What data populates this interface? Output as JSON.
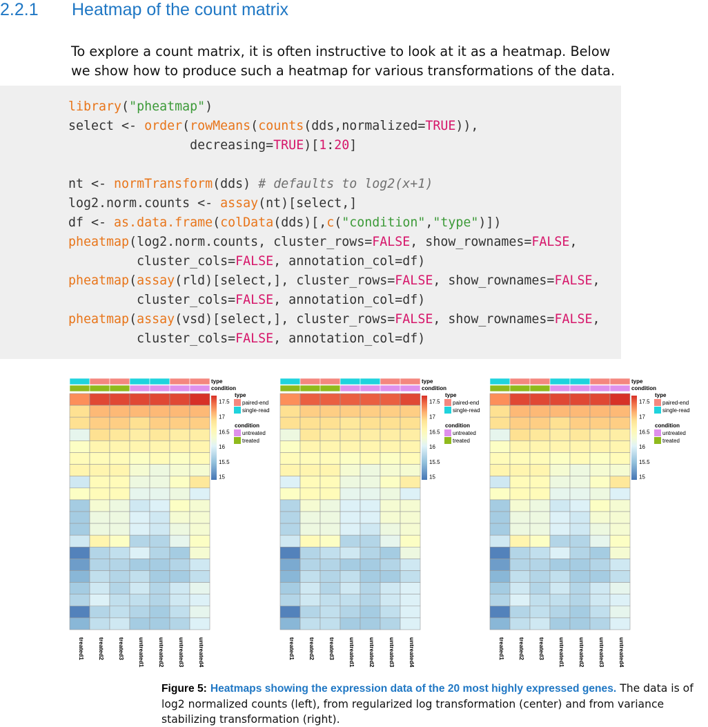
{
  "section": {
    "number": "2.2.1",
    "title": "Heatmap of the count matrix"
  },
  "intro": "To explore a count matrix, it is often instructive to look at it as a heatmap. Below we show how to produce such a heatmap for various transformations of the data.",
  "code_lines": [
    [
      [
        "fn",
        "library"
      ],
      [
        "p",
        "("
      ],
      [
        "str",
        "\"pheatmap\""
      ],
      [
        "p",
        ")"
      ]
    ],
    [
      [
        "p",
        "select <- "
      ],
      [
        "fn",
        "order"
      ],
      [
        "p",
        "("
      ],
      [
        "fn",
        "rowMeans"
      ],
      [
        "p",
        "("
      ],
      [
        "fn",
        "counts"
      ],
      [
        "p",
        "(dds,normalized="
      ],
      [
        "kw",
        "TRUE"
      ],
      [
        "p",
        ")),"
      ]
    ],
    [
      [
        "p",
        "                decreasing="
      ],
      [
        "kw",
        "TRUE"
      ],
      [
        "p",
        ")["
      ],
      [
        "kw",
        "1"
      ],
      [
        "p",
        ":"
      ],
      [
        "kw",
        "20"
      ],
      [
        "p",
        "]"
      ]
    ],
    [],
    [
      [
        "p",
        "nt <- "
      ],
      [
        "fn",
        "normTransform"
      ],
      [
        "p",
        "(dds) "
      ],
      [
        "cm",
        "# defaults to log2(x+1)"
      ]
    ],
    [
      [
        "p",
        "log2.norm.counts <- "
      ],
      [
        "fn",
        "assay"
      ],
      [
        "p",
        "(nt)[select,]"
      ]
    ],
    [
      [
        "p",
        "df <- "
      ],
      [
        "fn",
        "as.data.frame"
      ],
      [
        "p",
        "("
      ],
      [
        "fn",
        "colData"
      ],
      [
        "p",
        "(dds)[,"
      ],
      [
        "fn",
        "c"
      ],
      [
        "p",
        "("
      ],
      [
        "str",
        "\"condition\""
      ],
      [
        "p",
        ","
      ],
      [
        "str",
        "\"type\""
      ],
      [
        "p",
        ")])"
      ]
    ],
    [
      [
        "fn",
        "pheatmap"
      ],
      [
        "p",
        "(log2.norm.counts, cluster_rows="
      ],
      [
        "kw",
        "FALSE"
      ],
      [
        "p",
        ", show_rownames="
      ],
      [
        "kw",
        "FALSE"
      ],
      [
        "p",
        ","
      ]
    ],
    [
      [
        "p",
        "         cluster_cols="
      ],
      [
        "kw",
        "FALSE"
      ],
      [
        "p",
        ", annotation_col=df)"
      ]
    ],
    [
      [
        "fn",
        "pheatmap"
      ],
      [
        "p",
        "("
      ],
      [
        "fn",
        "assay"
      ],
      [
        "p",
        "(rld)[select,], cluster_rows="
      ],
      [
        "kw",
        "FALSE"
      ],
      [
        "p",
        ", show_rownames="
      ],
      [
        "kw",
        "FALSE"
      ],
      [
        "p",
        ","
      ]
    ],
    [
      [
        "p",
        "         cluster_cols="
      ],
      [
        "kw",
        "FALSE"
      ],
      [
        "p",
        ", annotation_col=df)"
      ]
    ],
    [
      [
        "fn",
        "pheatmap"
      ],
      [
        "p",
        "("
      ],
      [
        "fn",
        "assay"
      ],
      [
        "p",
        "(vsd)[select,], cluster_rows="
      ],
      [
        "kw",
        "FALSE"
      ],
      [
        "p",
        ", show_rownames="
      ],
      [
        "kw",
        "FALSE"
      ],
      [
        "p",
        ","
      ]
    ],
    [
      [
        "p",
        "         cluster_cols="
      ],
      [
        "kw",
        "FALSE"
      ],
      [
        "p",
        ", annotation_col=df)"
      ]
    ]
  ],
  "colors": {
    "section": "#1f77c4",
    "paired_end": "#f4877f",
    "single_read": "#1fd3dd",
    "untreated": "#df90ec",
    "treated": "#8fba1d"
  },
  "chart_data": [
    {
      "type": "heatmap",
      "columns": [
        "treated1",
        "treated2",
        "treated3",
        "untreated1",
        "untreated2",
        "untreated3",
        "untreated4"
      ],
      "annotations": {
        "type": [
          "single-read",
          "paired-end",
          "paired-end",
          "single-read",
          "single-read",
          "paired-end",
          "paired-end"
        ],
        "condition": [
          "treated",
          "treated",
          "treated",
          "untreated",
          "untreated",
          "untreated",
          "untreated"
        ]
      },
      "annotation_labels": {
        "type_row": "type",
        "condition_row": "condition"
      },
      "legend": {
        "scale_ticks": [
          "17.5",
          "17",
          "16.5",
          "16",
          "15.5",
          "15"
        ],
        "type_title": "type",
        "type_levels": [
          "paired-end",
          "single-read"
        ],
        "condition_title": "condition",
        "condition_levels": [
          "untreated",
          "treated"
        ]
      },
      "color_range": [
        14.9,
        17.7
      ],
      "values": [
        [
          17.3,
          17.6,
          17.6,
          17.6,
          17.6,
          17.6,
          17.7
        ],
        [
          16.9,
          17.1,
          17.1,
          17.1,
          17.1,
          17.1,
          17.1
        ],
        [
          16.9,
          17.0,
          17.0,
          16.9,
          17.0,
          17.0,
          17.0
        ],
        [
          16.1,
          16.9,
          16.8,
          16.7,
          16.8,
          16.7,
          16.7
        ],
        [
          16.4,
          16.6,
          16.6,
          16.6,
          16.6,
          16.6,
          16.6
        ],
        [
          16.5,
          16.5,
          16.5,
          16.4,
          16.5,
          16.4,
          16.5
        ],
        [
          16.6,
          16.6,
          16.6,
          16.3,
          16.2,
          16.3,
          16.3
        ],
        [
          15.9,
          16.5,
          16.5,
          16.2,
          16.2,
          16.4,
          16.8
        ],
        [
          16.4,
          16.5,
          16.5,
          16.1,
          16.1,
          16.2,
          16.0
        ],
        [
          15.6,
          16.3,
          16.2,
          15.9,
          16.0,
          16.4,
          16.3
        ],
        [
          15.6,
          16.2,
          16.2,
          16.0,
          15.9,
          16.3,
          16.3
        ],
        [
          15.6,
          16.2,
          16.2,
          16.0,
          15.9,
          16.2,
          16.3
        ],
        [
          15.9,
          16.6,
          16.4,
          15.7,
          15.7,
          16.1,
          16.4
        ],
        [
          15.0,
          15.7,
          15.8,
          16.0,
          15.7,
          15.6,
          16.3
        ],
        [
          15.2,
          15.7,
          15.7,
          15.6,
          15.6,
          15.7,
          15.9
        ],
        [
          15.4,
          15.8,
          15.7,
          15.8,
          15.6,
          15.6,
          15.8
        ],
        [
          15.6,
          15.9,
          15.7,
          15.9,
          15.7,
          15.9,
          16.1
        ],
        [
          15.7,
          16.0,
          15.8,
          15.8,
          15.7,
          15.9,
          16.0
        ],
        [
          15.0,
          15.7,
          15.8,
          15.7,
          15.6,
          15.8,
          16.1
        ],
        [
          15.4,
          15.8,
          15.9,
          15.6,
          15.6,
          15.7,
          16.0
        ]
      ]
    },
    {
      "type": "heatmap",
      "columns": [
        "treated1",
        "treated2",
        "treated3",
        "untreated1",
        "untreated2",
        "untreated3",
        "untreated4"
      ],
      "annotations": {
        "type": [
          "single-read",
          "paired-end",
          "paired-end",
          "single-read",
          "single-read",
          "paired-end",
          "paired-end"
        ],
        "condition": [
          "treated",
          "treated",
          "treated",
          "untreated",
          "untreated",
          "untreated",
          "untreated"
        ]
      },
      "annotation_labels": {
        "type_row": "type",
        "condition_row": "condition"
      },
      "legend": {
        "scale_ticks": [
          "17.5",
          "17",
          "16.5",
          "16",
          "15.5",
          "15"
        ],
        "type_title": "type",
        "type_levels": [
          "paired-end",
          "single-read"
        ],
        "condition_title": "condition",
        "condition_levels": [
          "untreated",
          "treated"
        ]
      },
      "color_range": [
        14.9,
        17.7
      ],
      "values": [
        [
          17.3,
          17.5,
          17.5,
          17.5,
          17.5,
          17.5,
          17.6
        ],
        [
          16.9,
          17.0,
          17.0,
          17.0,
          17.0,
          17.0,
          17.0
        ],
        [
          16.9,
          16.9,
          16.9,
          16.8,
          16.9,
          16.9,
          16.9
        ],
        [
          16.2,
          16.8,
          16.7,
          16.7,
          16.7,
          16.7,
          16.7
        ],
        [
          16.4,
          16.6,
          16.6,
          16.6,
          16.6,
          16.6,
          16.6
        ],
        [
          16.5,
          16.5,
          16.5,
          16.4,
          16.5,
          16.4,
          16.5
        ],
        [
          16.6,
          16.6,
          16.6,
          16.3,
          16.2,
          16.3,
          16.3
        ],
        [
          16.0,
          16.5,
          16.5,
          16.2,
          16.2,
          16.4,
          16.7
        ],
        [
          16.4,
          16.5,
          16.5,
          16.1,
          16.1,
          16.2,
          16.0
        ],
        [
          15.7,
          16.3,
          16.2,
          16.0,
          16.0,
          16.3,
          16.3
        ],
        [
          15.7,
          16.2,
          16.2,
          16.0,
          16.0,
          16.3,
          16.3
        ],
        [
          15.7,
          16.2,
          16.2,
          16.0,
          15.9,
          16.2,
          16.3
        ],
        [
          15.9,
          16.5,
          16.4,
          15.7,
          15.7,
          16.1,
          16.4
        ],
        [
          15.0,
          15.7,
          15.8,
          15.9,
          15.7,
          15.6,
          16.2
        ],
        [
          15.3,
          15.7,
          15.7,
          15.6,
          15.6,
          15.7,
          15.9
        ],
        [
          15.4,
          15.8,
          15.7,
          15.8,
          15.6,
          15.6,
          15.8
        ],
        [
          15.6,
          15.9,
          15.7,
          15.9,
          15.7,
          15.9,
          16.0
        ],
        [
          15.7,
          15.9,
          15.8,
          15.8,
          15.7,
          15.9,
          16.0
        ],
        [
          15.0,
          15.7,
          15.8,
          15.7,
          15.6,
          15.8,
          16.0
        ],
        [
          15.4,
          15.8,
          15.8,
          15.6,
          15.6,
          15.7,
          16.0
        ]
      ]
    },
    {
      "type": "heatmap",
      "columns": [
        "treated1",
        "treated2",
        "treated3",
        "untreated1",
        "untreated2",
        "untreated3",
        "untreated4"
      ],
      "annotations": {
        "type": [
          "single-read",
          "paired-end",
          "paired-end",
          "single-read",
          "single-read",
          "paired-end",
          "paired-end"
        ],
        "condition": [
          "treated",
          "treated",
          "treated",
          "untreated",
          "untreated",
          "untreated",
          "untreated"
        ]
      },
      "annotation_labels": {
        "type_row": "type",
        "condition_row": "condition"
      },
      "legend": {
        "scale_ticks": [
          "17.5",
          "17",
          "16.5",
          "16",
          "15.5",
          "15"
        ],
        "type_title": "type",
        "type_levels": [
          "paired-end",
          "single-read"
        ],
        "condition_title": "condition",
        "condition_levels": [
          "untreated",
          "treated"
        ]
      },
      "color_range": [
        14.9,
        17.7
      ],
      "values": [
        [
          17.3,
          17.6,
          17.6,
          17.6,
          17.6,
          17.6,
          17.7
        ],
        [
          16.9,
          17.1,
          17.1,
          17.1,
          17.1,
          17.1,
          17.1
        ],
        [
          16.9,
          17.0,
          17.0,
          16.9,
          17.0,
          17.0,
          17.0
        ],
        [
          16.1,
          16.9,
          16.8,
          16.7,
          16.8,
          16.7,
          16.7
        ],
        [
          16.4,
          16.6,
          16.6,
          16.6,
          16.6,
          16.6,
          16.6
        ],
        [
          16.5,
          16.5,
          16.5,
          16.4,
          16.5,
          16.4,
          16.5
        ],
        [
          16.6,
          16.6,
          16.6,
          16.3,
          16.2,
          16.3,
          16.3
        ],
        [
          15.9,
          16.5,
          16.5,
          16.2,
          16.2,
          16.4,
          16.8
        ],
        [
          16.4,
          16.5,
          16.5,
          16.1,
          16.1,
          16.2,
          16.0
        ],
        [
          15.6,
          16.3,
          16.2,
          15.9,
          16.0,
          16.4,
          16.3
        ],
        [
          15.6,
          16.2,
          16.2,
          16.0,
          15.9,
          16.3,
          16.3
        ],
        [
          15.6,
          16.2,
          16.2,
          16.0,
          15.9,
          16.2,
          16.3
        ],
        [
          15.9,
          16.6,
          16.4,
          15.7,
          15.7,
          16.1,
          16.4
        ],
        [
          15.0,
          15.7,
          15.8,
          16.0,
          15.7,
          15.6,
          16.3
        ],
        [
          15.2,
          15.7,
          15.7,
          15.6,
          15.6,
          15.7,
          15.9
        ],
        [
          15.4,
          15.8,
          15.7,
          15.8,
          15.6,
          15.6,
          15.8
        ],
        [
          15.6,
          15.9,
          15.7,
          15.9,
          15.7,
          15.9,
          16.1
        ],
        [
          15.7,
          16.0,
          15.8,
          15.8,
          15.7,
          15.9,
          16.0
        ],
        [
          15.0,
          15.7,
          15.8,
          15.7,
          15.6,
          15.8,
          16.1
        ],
        [
          15.4,
          15.8,
          15.9,
          15.6,
          15.6,
          15.7,
          16.0
        ]
      ]
    }
  ],
  "caption": {
    "figure_label": "Figure 5:",
    "headline": "Heatmaps showing the expression data of the 20 most highly expressed genes.",
    "body": "The data is of log2 normalized counts (left), from regularized log transformation (center) and from variance stabilizing transformation (right)."
  }
}
